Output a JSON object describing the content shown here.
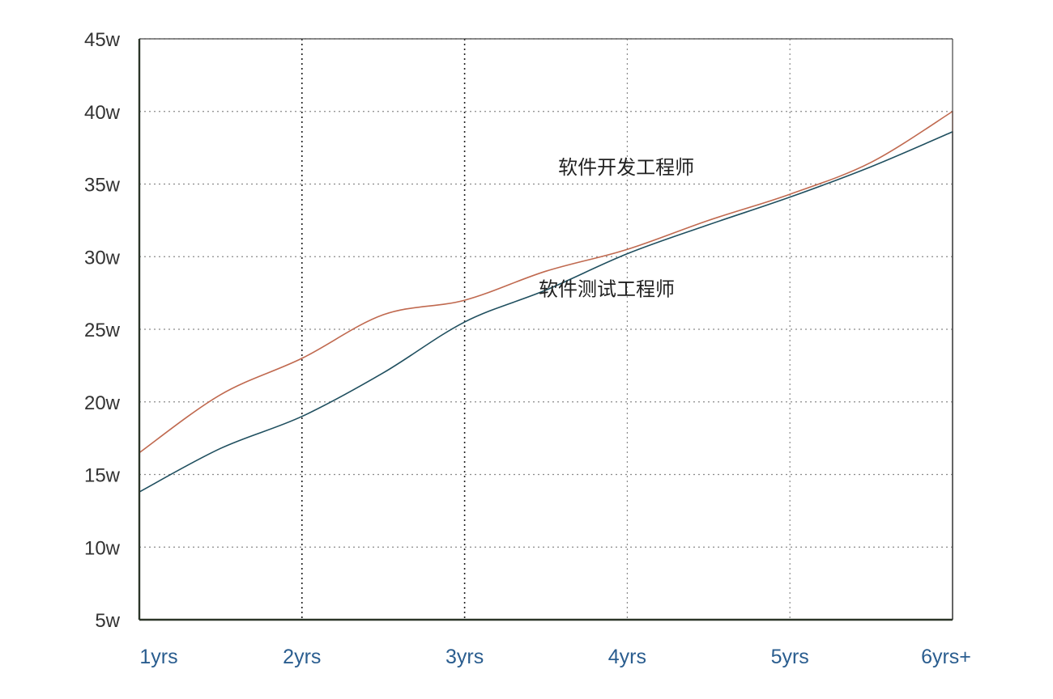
{
  "colors": {
    "x_tick_text": "#2a5d8f",
    "y_tick_text": "#333333",
    "grid": "#8a8a8a",
    "axis": "#2b3528",
    "frame": "#444444",
    "developer_line": "#c0694f",
    "tester_line": "#1f4f5f"
  },
  "chart_data": {
    "type": "line",
    "title": "",
    "xlabel": "",
    "ylabel": "",
    "categories": [
      "1yrs",
      "2yrs",
      "3yrs",
      "4yrs",
      "5yrs",
      "6yrs+"
    ],
    "ylim": [
      5,
      45
    ],
    "yticks": [
      5,
      10,
      15,
      20,
      25,
      30,
      35,
      40,
      45
    ],
    "ytick_labels": [
      "5w",
      "10w",
      "15w",
      "20w",
      "25w",
      "30w",
      "35w",
      "40w",
      "45w"
    ],
    "grid": true,
    "grid_style": "dotted",
    "series": [
      {
        "name": "软件开发工程师",
        "color_key": "developer_line",
        "x": [
          0,
          0.5,
          1,
          1.5,
          2,
          2.5,
          3,
          3.5,
          4,
          4.5,
          5
        ],
        "values": [
          16.5,
          20.5,
          23,
          26,
          27,
          29,
          30.5,
          32.5,
          34.3,
          36.5,
          40
        ]
      },
      {
        "name": "软件测试工程师",
        "color_key": "tester_line",
        "x": [
          0,
          0.5,
          1,
          1.5,
          2,
          2.5,
          3,
          3.5,
          4,
          4.5,
          5
        ],
        "values": [
          13.8,
          16.8,
          19,
          22,
          25.5,
          27.7,
          30.2,
          32.2,
          34.1,
          36.2,
          38.6
        ]
      }
    ]
  }
}
